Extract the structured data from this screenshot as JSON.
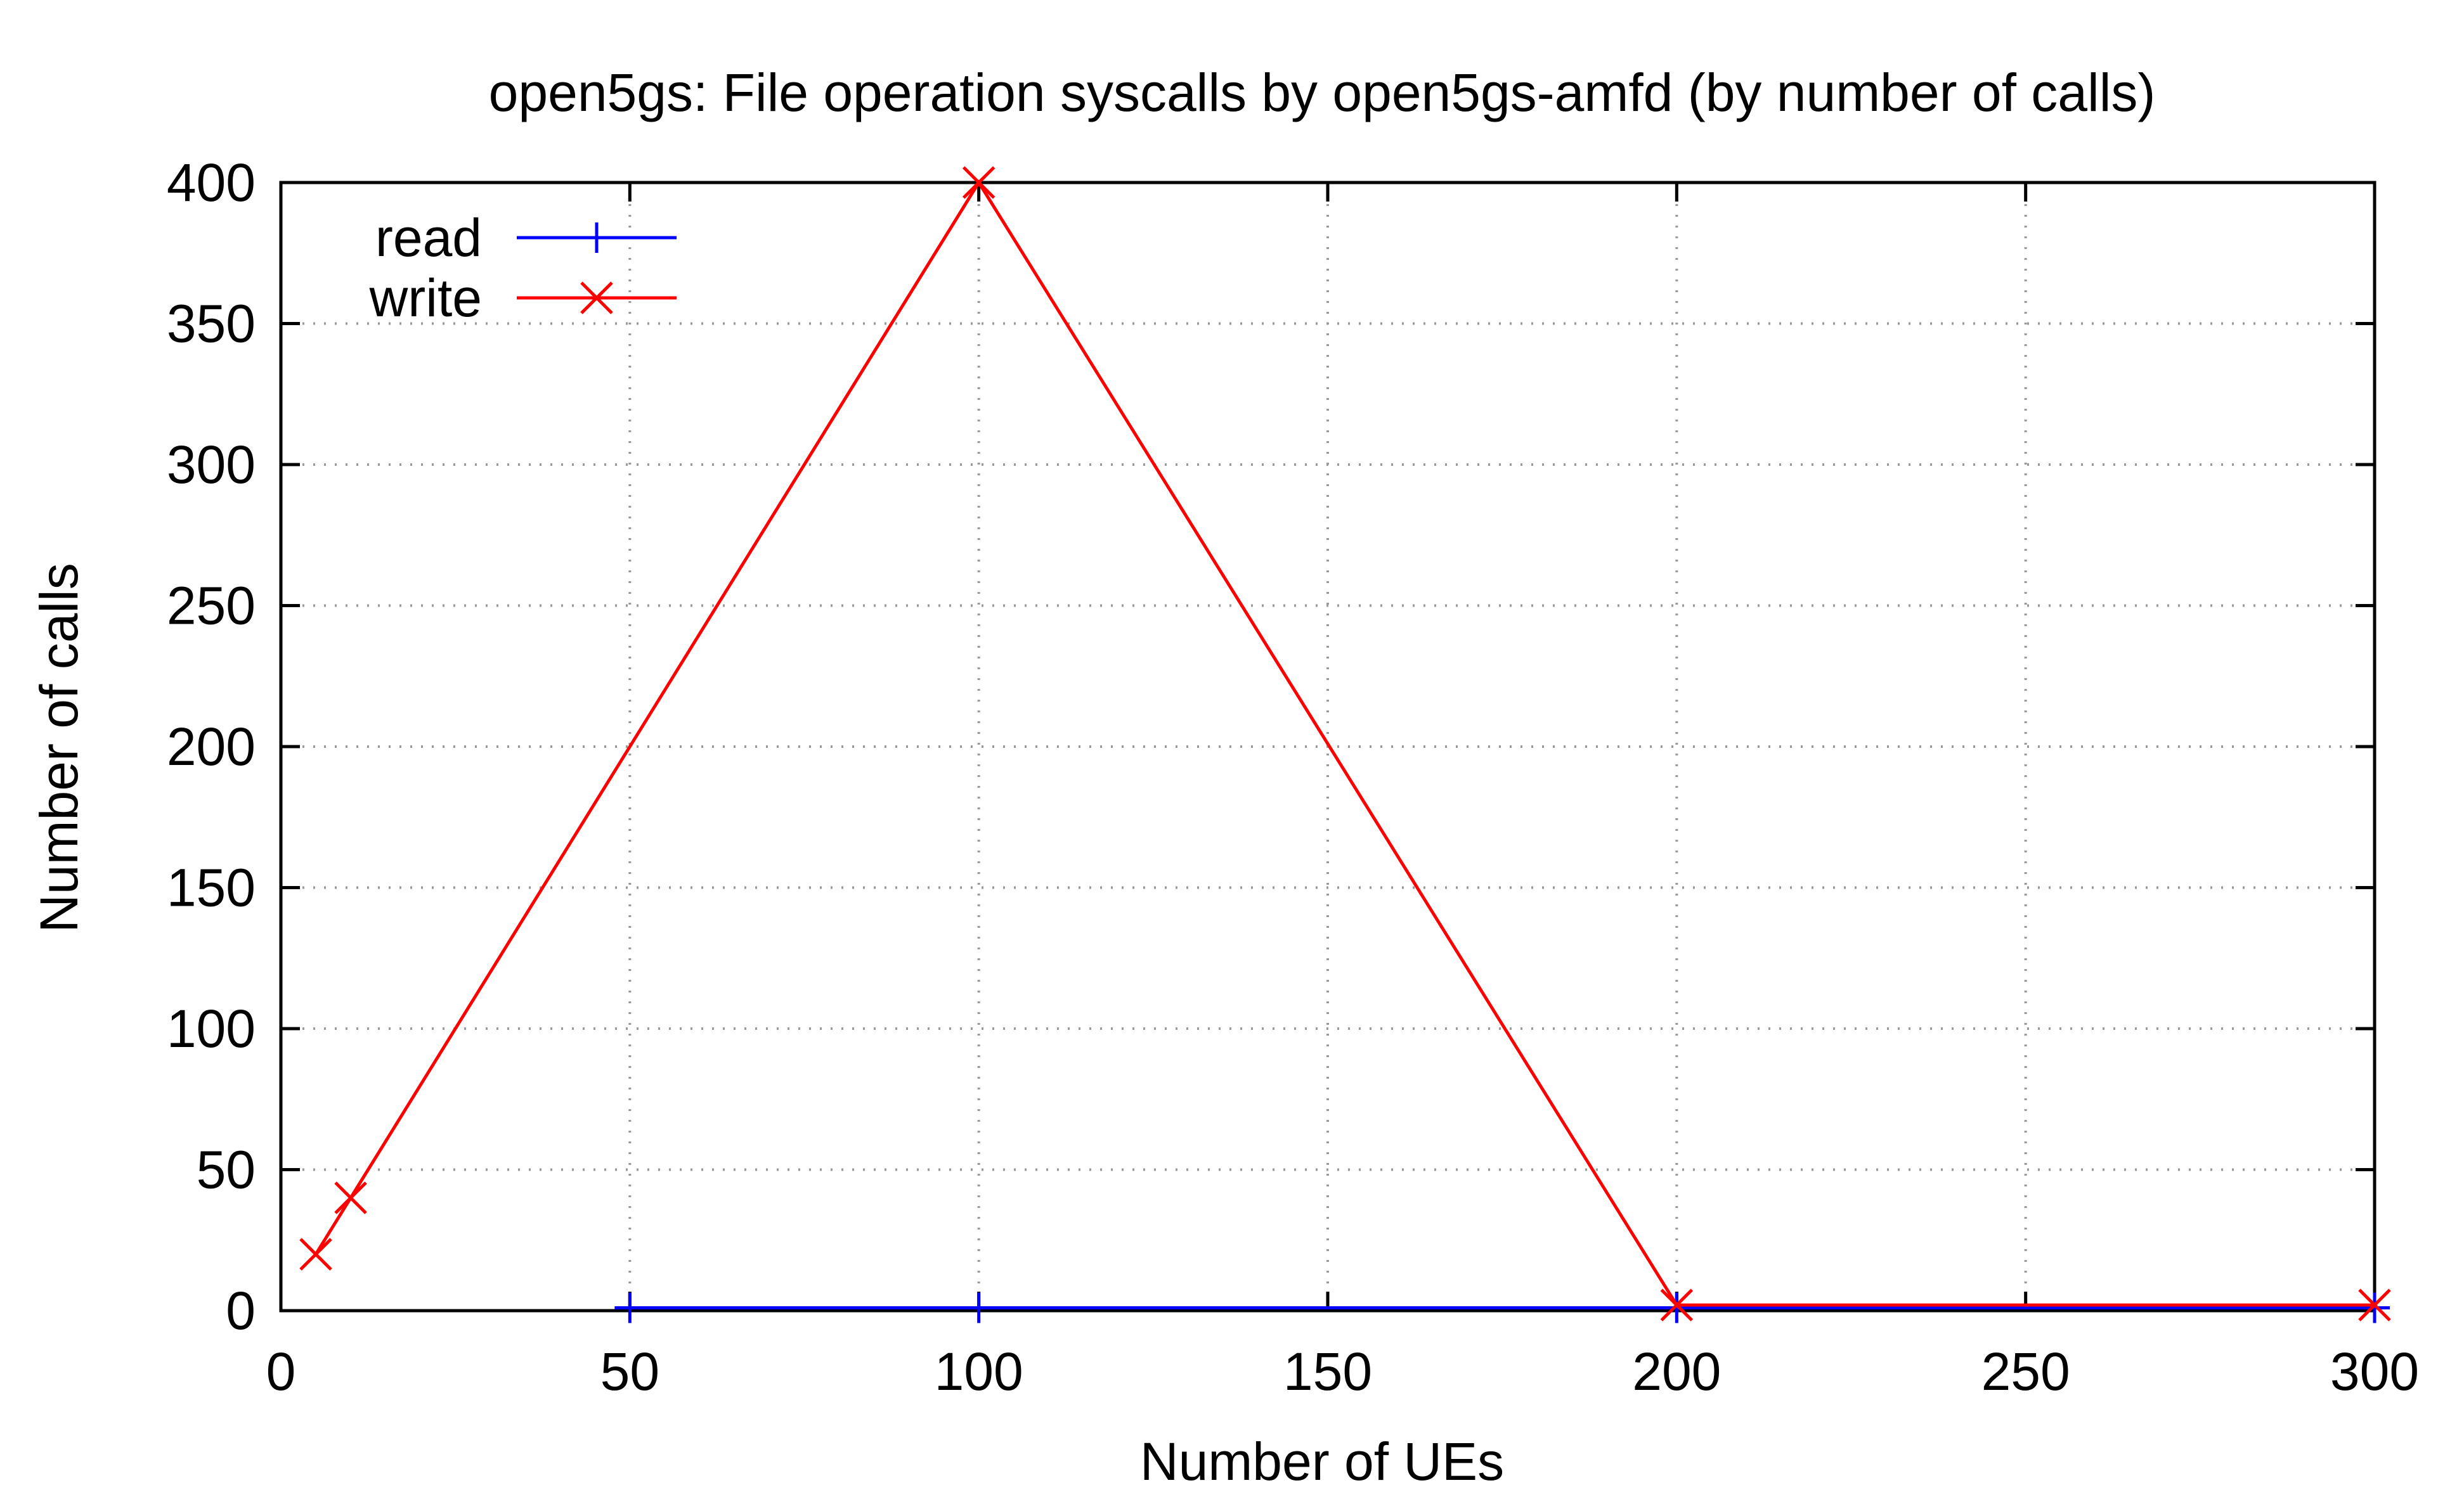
{
  "chart_data": {
    "type": "line",
    "title": "open5gs: File operation syscalls by open5gs-amfd (by number of calls)",
    "xlabel": "Number of UEs",
    "ylabel": "Number of calls",
    "xlim": [
      0,
      300
    ],
    "ylim": [
      0,
      400
    ],
    "xticks": [
      0,
      50,
      100,
      150,
      200,
      250,
      300
    ],
    "yticks": [
      0,
      50,
      100,
      150,
      200,
      250,
      300,
      350,
      400
    ],
    "x_tick_labels": [
      "0",
      "50",
      "100",
      "150",
      "200",
      "250",
      "300"
    ],
    "y_tick_labels": [
      "0",
      "50",
      "100",
      "150",
      "200",
      "250",
      "300",
      "350",
      "400"
    ],
    "grid": true,
    "legend_position": "top-left",
    "series": [
      {
        "name": "read",
        "color": "#0000ff",
        "marker": "plus",
        "x": [
          50,
          100,
          200,
          300
        ],
        "y": [
          1,
          1,
          1,
          1
        ]
      },
      {
        "name": "write",
        "color": "#ff0000",
        "marker": "cross",
        "x": [
          5,
          10,
          100,
          200,
          300
        ],
        "y": [
          20,
          40,
          400,
          2,
          2
        ]
      }
    ]
  }
}
